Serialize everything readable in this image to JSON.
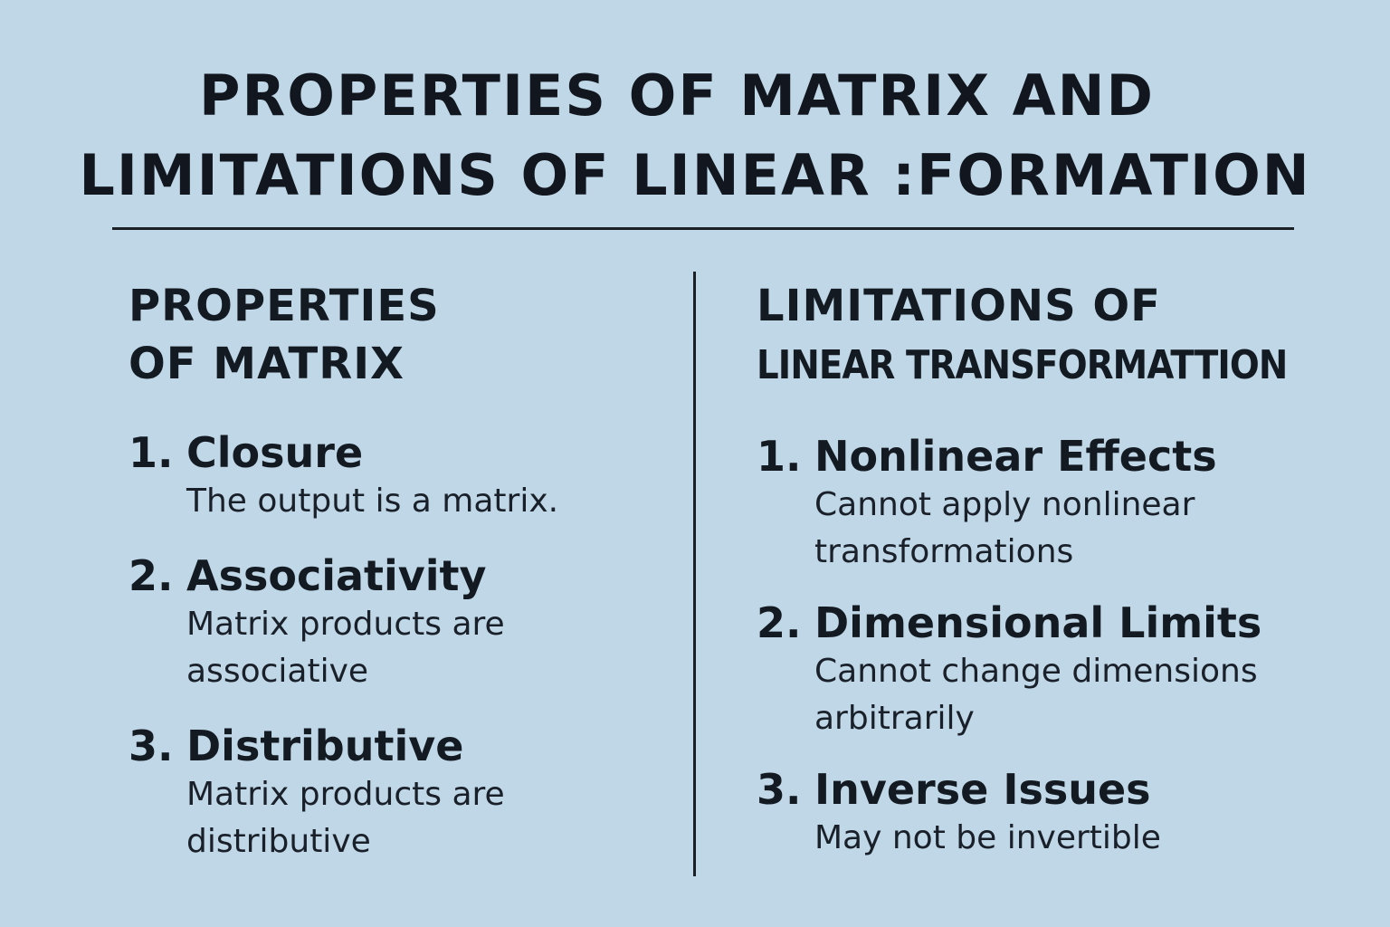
{
  "title": {
    "line1": "PROPERTIES OF MATRIX AND",
    "line2": "LIMITATIONS OF LINEAR :FORMATION"
  },
  "left": {
    "heading_line1": "PROPERTIES",
    "heading_line2": "OF MATRIX",
    "items": [
      {
        "number": "1.",
        "title": "Closure",
        "desc_lines": [
          "The output is a matrix."
        ]
      },
      {
        "number": "2.",
        "title": "Associativity",
        "desc_lines": [
          "Matrix products are",
          "associative"
        ]
      },
      {
        "number": "3.",
        "title": "Distributive",
        "desc_lines": [
          "Matrix products are",
          "distributive"
        ]
      }
    ]
  },
  "right": {
    "heading_line1": "LIMITATIONS OF",
    "heading_line2": "LINEAR TRANSFORMATTION",
    "items": [
      {
        "number": "1.",
        "title": "Nonlinear Effects",
        "desc_lines": [
          "Cannot apply nonlinear",
          "transformations"
        ]
      },
      {
        "number": "2.",
        "title": "Dimensional Limits",
        "desc_lines": [
          "Cannot change dimensions",
          "arbitrarily"
        ]
      },
      {
        "number": "3.",
        "title": "Inverse Issues",
        "desc_lines": [
          "May not be invertible"
        ]
      }
    ]
  },
  "colors": {
    "background": "#bfd7e7",
    "text": "#141a22",
    "rule": "#1b1f26"
  }
}
